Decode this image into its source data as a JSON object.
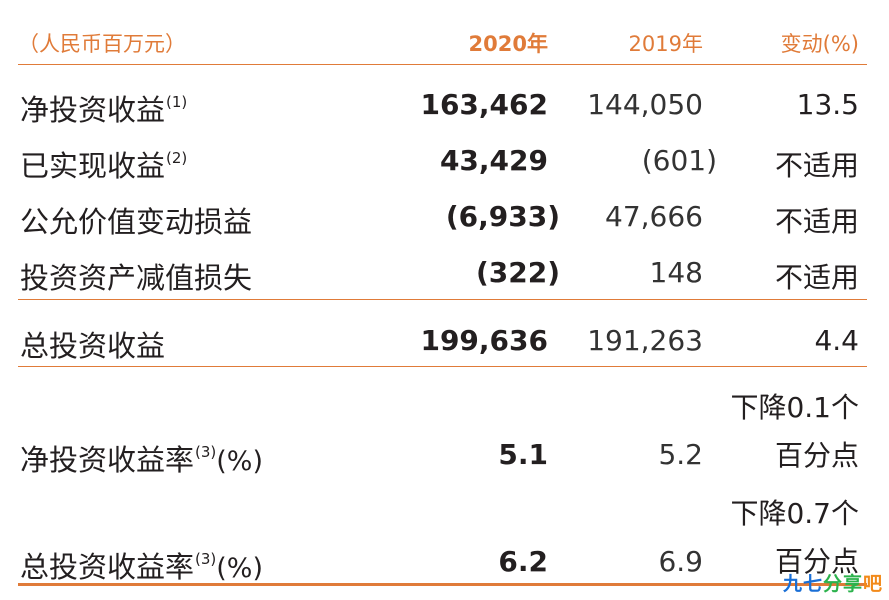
{
  "header": {
    "unit": "（人民币百万元）",
    "col_2020": "2020年",
    "col_2019": "2019年",
    "col_change": "变动(%)"
  },
  "rows": [
    {
      "label": "净投资收益",
      "note": "(1)",
      "v2020": "163,462",
      "v2019": "144,050",
      "change": "13.5"
    },
    {
      "label": "已实现收益",
      "note": "(2)",
      "v2020": "43,429",
      "v2019": "(601)",
      "change": "不适用"
    },
    {
      "label": "公允价值变动损益",
      "note": "",
      "v2020": "(6,933)",
      "v2019": "47,666",
      "change": "不适用"
    },
    {
      "label": "投资资产减值损失",
      "note": "",
      "v2020": "(322)",
      "v2019": "148",
      "change": "不适用"
    }
  ],
  "total": {
    "label": "总投资收益",
    "v2020": "199,636",
    "v2019": "191,263",
    "change": "4.4"
  },
  "ratios": [
    {
      "label": "净投资收益率",
      "note": "(3)",
      "unit": "(%)",
      "v2020": "5.1",
      "v2019": "5.2",
      "change_line1": "下降0.1个",
      "change_line2": "百分点"
    },
    {
      "label": "总投资收益率",
      "note": "(3)",
      "unit": "(%)",
      "v2020": "6.2",
      "v2019": "6.9",
      "change_line1": "下降0.7个",
      "change_line2": "百分点"
    }
  ],
  "watermark": {
    "part1": "九七",
    "part2": "分享",
    "part3": "吧"
  },
  "colors": {
    "accent": "#e07b39",
    "text": "#231f20"
  }
}
